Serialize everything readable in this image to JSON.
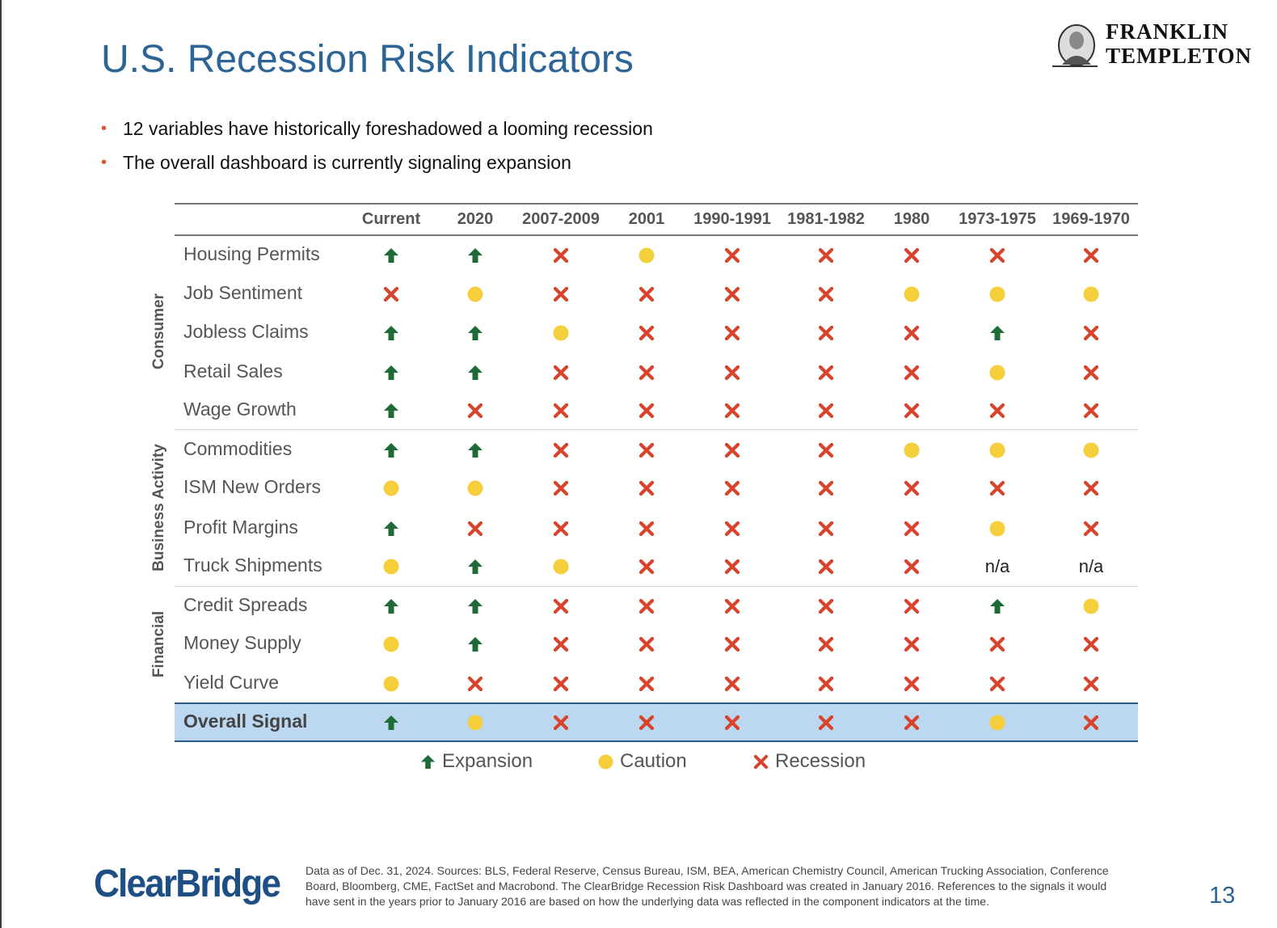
{
  "title": "U.S. Recession Risk Indicators",
  "brand": {
    "line1": "FRANKLIN",
    "line2": "TEMPLETON",
    "footer_logo": "ClearBridge"
  },
  "bullets": [
    "12 variables have historically foreshadowed a looming recession",
    "The overall dashboard is currently signaling expansion"
  ],
  "colors": {
    "title": "#2c6496",
    "expansion": "#1e6b35",
    "caution": "#f4cf3b",
    "recession": "#d9432b",
    "overall_band": "#bcd8f1",
    "bullet": "#e0542b"
  },
  "chart_data": {
    "type": "table",
    "columns": [
      "Current",
      "2020",
      "2007-2009",
      "2001",
      "1990-1991",
      "1981-1982",
      "1980",
      "1973-1975",
      "1969-1970"
    ],
    "groups": [
      {
        "name": "Consumer",
        "rows": [
          "Housing Permits",
          "Job Sentiment",
          "Jobless Claims",
          "Retail Sales",
          "Wage Growth"
        ]
      },
      {
        "name": "Business Activity",
        "rows": [
          "Commodities",
          "ISM New Orders",
          "Profit Margins",
          "Truck Shipments"
        ]
      },
      {
        "name": "Financial",
        "rows": [
          "Credit Spreads",
          "Money Supply",
          "Yield Curve"
        ]
      }
    ],
    "rows": [
      {
        "label": "Housing Permits",
        "values": [
          "E",
          "E",
          "R",
          "C",
          "R",
          "R",
          "R",
          "R",
          "R"
        ]
      },
      {
        "label": "Job Sentiment",
        "values": [
          "R",
          "C",
          "R",
          "R",
          "R",
          "R",
          "C",
          "C",
          "C"
        ]
      },
      {
        "label": "Jobless Claims",
        "values": [
          "E",
          "E",
          "C",
          "R",
          "R",
          "R",
          "R",
          "E",
          "R"
        ]
      },
      {
        "label": "Retail Sales",
        "values": [
          "E",
          "E",
          "R",
          "R",
          "R",
          "R",
          "R",
          "C",
          "R"
        ]
      },
      {
        "label": "Wage Growth",
        "values": [
          "E",
          "R",
          "R",
          "R",
          "R",
          "R",
          "R",
          "R",
          "R"
        ]
      },
      {
        "label": "Commodities",
        "values": [
          "E",
          "E",
          "R",
          "R",
          "R",
          "R",
          "C",
          "C",
          "C"
        ]
      },
      {
        "label": "ISM New Orders",
        "values": [
          "C",
          "C",
          "R",
          "R",
          "R",
          "R",
          "R",
          "R",
          "R"
        ]
      },
      {
        "label": "Profit Margins",
        "values": [
          "E",
          "R",
          "R",
          "R",
          "R",
          "R",
          "R",
          "C",
          "R"
        ]
      },
      {
        "label": "Truck Shipments",
        "values": [
          "C",
          "E",
          "C",
          "R",
          "R",
          "R",
          "R",
          "n/a",
          "n/a"
        ]
      },
      {
        "label": "Credit Spreads",
        "values": [
          "E",
          "E",
          "R",
          "R",
          "R",
          "R",
          "R",
          "E",
          "C"
        ]
      },
      {
        "label": "Money Supply",
        "values": [
          "C",
          "E",
          "R",
          "R",
          "R",
          "R",
          "R",
          "R",
          "R"
        ]
      },
      {
        "label": "Yield Curve",
        "values": [
          "C",
          "R",
          "R",
          "R",
          "R",
          "R",
          "R",
          "R",
          "R"
        ]
      }
    ],
    "overall": {
      "label": "Overall Signal",
      "values": [
        "E",
        "C",
        "R",
        "R",
        "R",
        "R",
        "R",
        "C",
        "R"
      ]
    },
    "legend": [
      {
        "key": "E",
        "label": "Expansion",
        "icon": "up-arrow-icon"
      },
      {
        "key": "C",
        "label": "Caution",
        "icon": "yellow-dot-icon"
      },
      {
        "key": "R",
        "label": "Recession",
        "icon": "red-x-icon"
      }
    ]
  },
  "footnote": "Data as of Dec. 31, 2024. Sources: BLS, Federal Reserve, Census Bureau, ISM, BEA, American Chemistry Council, American Trucking Association, Conference Board, Bloomberg, CME, FactSet and Macrobond. The ClearBridge Recession Risk Dashboard was created in January 2016. References to the signals it would have sent in the years prior to January 2016 are based on how the underlying data was reflected in the component indicators at the time.",
  "page_number": "13"
}
